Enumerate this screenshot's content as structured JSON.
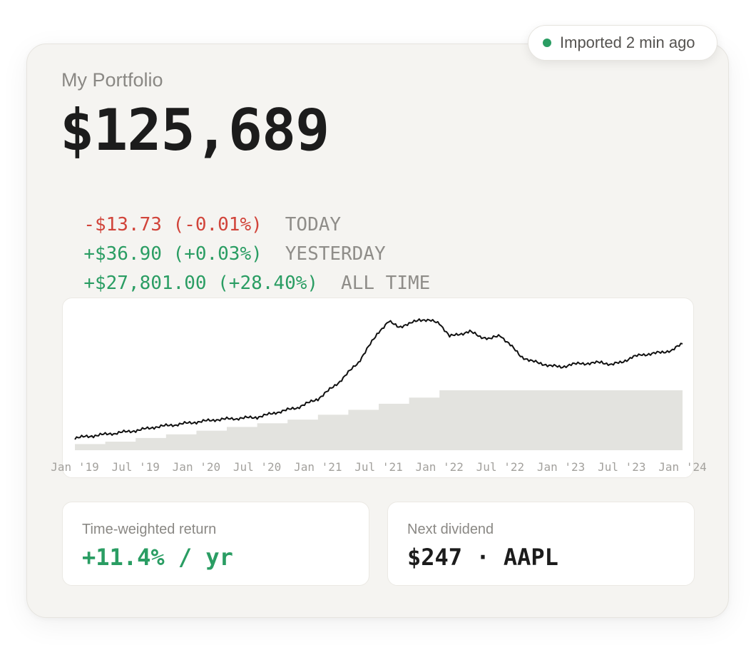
{
  "import_status": {
    "text": "Imported 2 min ago",
    "dot_color": "#2a9d63"
  },
  "portfolio": {
    "title": "My Portfolio",
    "balance": "$125,689"
  },
  "changes": [
    {
      "amount": "-$13.73 (-0.01%)",
      "period": "TODAY",
      "direction": "negative"
    },
    {
      "amount": "+$36.90 (+0.03%)",
      "period": "YESTERDAY",
      "direction": "positive"
    },
    {
      "amount": "+$27,801.00 (+28.40%)",
      "period": "ALL TIME",
      "direction": "positive"
    }
  ],
  "chart_data": {
    "type": "line",
    "x_tick_labels": [
      "Jan '19",
      "Jul '19",
      "Jan '20",
      "Jul '20",
      "Jan '21",
      "Jul '21",
      "Jan '22",
      "Jul '22",
      "Jan '23",
      "Jul '23",
      "Jan '24"
    ],
    "x_range": [
      "2019-01",
      "2024-01"
    ],
    "grid": false,
    "series": [
      {
        "type": "line",
        "color": "#111111",
        "x": [
          "2019-01",
          "2019-03",
          "2019-05",
          "2019-07",
          "2019-09",
          "2019-11",
          "2020-01",
          "2020-03",
          "2020-05",
          "2020-07",
          "2020-09",
          "2020-11",
          "2021-01",
          "2021-03",
          "2021-05",
          "2021-07",
          "2021-08",
          "2021-09",
          "2021-10",
          "2021-11",
          "2021-12",
          "2022-01",
          "2022-02",
          "2022-03",
          "2022-04",
          "2022-05",
          "2022-06",
          "2022-07",
          "2022-08",
          "2022-09",
          "2022-10",
          "2022-11",
          "2022-12",
          "2023-01",
          "2023-02",
          "2023-03",
          "2023-04",
          "2023-05",
          "2023-06",
          "2023-07",
          "2023-08",
          "2023-09",
          "2023-10",
          "2023-11",
          "2023-12",
          "2024-01"
        ],
        "values": [
          10,
          12,
          14,
          16,
          19,
          21,
          23,
          25,
          26,
          27,
          31,
          35,
          42,
          55,
          72,
          97,
          105,
          101,
          103,
          107,
          106,
          104,
          93,
          95,
          97,
          93,
          91,
          94,
          86,
          77,
          73,
          71,
          69,
          68,
          70,
          71,
          71,
          72,
          70,
          72,
          76,
          78,
          79,
          80,
          82,
          87
        ]
      },
      {
        "type": "step-area",
        "color": "#e3e3df",
        "x": [
          "2019-01",
          "2019-04",
          "2019-07",
          "2019-10",
          "2020-01",
          "2020-04",
          "2020-07",
          "2020-10",
          "2021-01",
          "2021-04",
          "2021-07",
          "2021-10",
          "2022-01",
          "2024-01"
        ],
        "values": [
          5,
          7,
          10,
          13,
          16,
          19,
          22,
          25,
          29,
          33,
          38,
          43,
          49,
          50
        ]
      }
    ]
  },
  "stats": {
    "twr": {
      "label": "Time-weighted return",
      "value": "+11.4% / yr"
    },
    "dividend": {
      "label": "Next dividend",
      "value": "$247 · AAPL"
    }
  }
}
